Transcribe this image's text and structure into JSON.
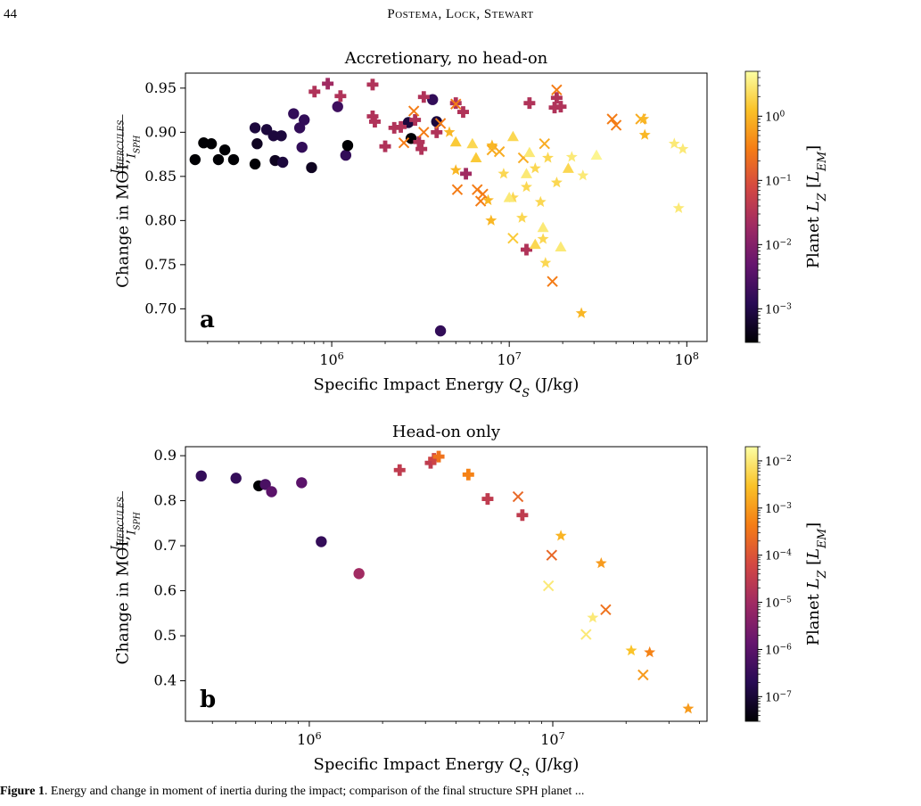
{
  "page": {
    "number": "44",
    "running_head": "Postema, Lock, Stewart",
    "caption_label": "Figure 1",
    "caption_text": ". Energy and change in moment of inertia during the impact; comparison of the final structure SPH planet ..."
  },
  "colorbar_palette": [
    "#000004",
    "#280b54",
    "#65156e",
    "#9f2a63",
    "#d44842",
    "#f57d15",
    "#fac228",
    "#fcffa4"
  ],
  "chart_data": [
    {
      "type": "scatter",
      "panel_letter": "a",
      "title": "Accretionary, no head-on",
      "xlabel": "Specific Impact Energy Q_S (J/kg)",
      "xlabel_parts": {
        "main": "Specific Impact Energy ",
        "sym": "Q",
        "sub": "S",
        "unit": " (J/kg)"
      },
      "ylabel_parts": {
        "main": "Change in MOI, ",
        "num": "I",
        "num_sub": "HERCULES",
        "den": "I",
        "den_sub": "SPH"
      },
      "x_scale": "log",
      "xlim": [
        150000,
        130000000
      ],
      "ylim": [
        0.663,
        0.967
      ],
      "yticks": [
        "0.70",
        "0.75",
        "0.80",
        "0.85",
        "0.90",
        "0.95"
      ],
      "xticks": [
        {
          "base": "10",
          "exp": "6"
        },
        {
          "base": "10",
          "exp": "7"
        },
        {
          "base": "10",
          "exp": "8"
        }
      ],
      "colorbar_label_parts": {
        "main": "Planet ",
        "sym": "L",
        "sub": "Z",
        "unit_l": " [",
        "unit": "L",
        "unit_sub": "EM",
        "unit_r": "]"
      },
      "colorbar_scale": "log",
      "colorbar_range": [
        0.0003,
        5
      ],
      "colorbar_ticks": [
        {
          "base": "10",
          "exp": "−3"
        },
        {
          "base": "10",
          "exp": "−2"
        },
        {
          "base": "10",
          "exp": "−1"
        },
        {
          "base": "10",
          "exp": "0"
        }
      ],
      "points": [
        {
          "x": 170000,
          "y": 0.869,
          "m": "o",
          "c": 0.0003
        },
        {
          "x": 190000,
          "y": 0.888,
          "m": "o",
          "c": 0.0003
        },
        {
          "x": 210000,
          "y": 0.887,
          "m": "o",
          "c": 0.0003
        },
        {
          "x": 230000,
          "y": 0.869,
          "m": "o",
          "c": 0.0003
        },
        {
          "x": 250000,
          "y": 0.88,
          "m": "o",
          "c": 0.0003
        },
        {
          "x": 280000,
          "y": 0.869,
          "m": "o",
          "c": 0.0003
        },
        {
          "x": 370000,
          "y": 0.864,
          "m": "o",
          "c": 0.0003
        },
        {
          "x": 370000,
          "y": 0.905,
          "m": "o",
          "c": 0.0008
        },
        {
          "x": 380000,
          "y": 0.887,
          "m": "o",
          "c": 0.0005
        },
        {
          "x": 430000,
          "y": 0.903,
          "m": "o",
          "c": 0.0008
        },
        {
          "x": 470000,
          "y": 0.896,
          "m": "o",
          "c": 0.0008
        },
        {
          "x": 480000,
          "y": 0.868,
          "m": "o",
          "c": 0.0005
        },
        {
          "x": 520000,
          "y": 0.896,
          "m": "o",
          "c": 0.0008
        },
        {
          "x": 530000,
          "y": 0.866,
          "m": "o",
          "c": 0.0008
        },
        {
          "x": 610000,
          "y": 0.921,
          "m": "o",
          "c": 0.0015
        },
        {
          "x": 660000,
          "y": 0.905,
          "m": "o",
          "c": 0.0015
        },
        {
          "x": 680000,
          "y": 0.883,
          "m": "o",
          "c": 0.0015
        },
        {
          "x": 700000,
          "y": 0.914,
          "m": "o",
          "c": 0.0015
        },
        {
          "x": 770000,
          "y": 0.86,
          "m": "o",
          "c": 0.0005
        },
        {
          "x": 1080000,
          "y": 0.929,
          "m": "o",
          "c": 0.002
        },
        {
          "x": 1200000,
          "y": 0.874,
          "m": "o",
          "c": 0.0015
        },
        {
          "x": 1230000,
          "y": 0.885,
          "m": "o",
          "c": 0.0003
        },
        {
          "x": 2700000,
          "y": 0.911,
          "m": "o",
          "c": 0.0008
        },
        {
          "x": 2800000,
          "y": 0.893,
          "m": "o",
          "c": 0.0003
        },
        {
          "x": 3700000,
          "y": 0.937,
          "m": "o",
          "c": 0.0015
        },
        {
          "x": 3900000,
          "y": 0.912,
          "m": "o",
          "c": 0.0008
        },
        {
          "x": 4100000,
          "y": 0.675,
          "m": "o",
          "c": 0.0015
        },
        {
          "x": 800000,
          "y": 0.946,
          "m": "P",
          "c": 0.03
        },
        {
          "x": 950000,
          "y": 0.955,
          "m": "P",
          "c": 0.02
        },
        {
          "x": 1120000,
          "y": 0.941,
          "m": "P",
          "c": 0.03
        },
        {
          "x": 1700000,
          "y": 0.954,
          "m": "P",
          "c": 0.03
        },
        {
          "x": 1700000,
          "y": 0.918,
          "m": "P",
          "c": 0.03
        },
        {
          "x": 1750000,
          "y": 0.912,
          "m": "P",
          "c": 0.03
        },
        {
          "x": 2000000,
          "y": 0.884,
          "m": "P",
          "c": 0.03
        },
        {
          "x": 2250000,
          "y": 0.905,
          "m": "P",
          "c": 0.03
        },
        {
          "x": 2450000,
          "y": 0.906,
          "m": "P",
          "c": 0.03
        },
        {
          "x": 2950000,
          "y": 0.914,
          "m": "P",
          "c": 0.03
        },
        {
          "x": 3100000,
          "y": 0.889,
          "m": "P",
          "c": 0.03
        },
        {
          "x": 3200000,
          "y": 0.881,
          "m": "P",
          "c": 0.03
        },
        {
          "x": 3300000,
          "y": 0.94,
          "m": "P",
          "c": 0.03
        },
        {
          "x": 3900000,
          "y": 0.9,
          "m": "P",
          "c": 0.03
        },
        {
          "x": 5000000,
          "y": 0.933,
          "m": "P",
          "c": 0.03
        },
        {
          "x": 5500000,
          "y": 0.923,
          "m": "P",
          "c": 0.03
        },
        {
          "x": 5700000,
          "y": 0.853,
          "m": "P",
          "c": 0.02
        },
        {
          "x": 12500000,
          "y": 0.767,
          "m": "P",
          "c": 0.03
        },
        {
          "x": 13000000,
          "y": 0.933,
          "m": "P",
          "c": 0.03
        },
        {
          "x": 18000000,
          "y": 0.928,
          "m": "P",
          "c": 0.03
        },
        {
          "x": 18500000,
          "y": 0.939,
          "m": "P",
          "c": 0.03
        },
        {
          "x": 19500000,
          "y": 0.929,
          "m": "P",
          "c": 0.03
        },
        {
          "x": 2550000,
          "y": 0.888,
          "m": "x",
          "c": 0.3
        },
        {
          "x": 2900000,
          "y": 0.924,
          "m": "x",
          "c": 0.3
        },
        {
          "x": 3300000,
          "y": 0.9,
          "m": "x",
          "c": 0.3
        },
        {
          "x": 4100000,
          "y": 0.91,
          "m": "x",
          "c": 0.3
        },
        {
          "x": 5000000,
          "y": 0.932,
          "m": "x",
          "c": 0.3
        },
        {
          "x": 5100000,
          "y": 0.835,
          "m": "x",
          "c": 0.3
        },
        {
          "x": 6600000,
          "y": 0.835,
          "m": "x",
          "c": 0.3
        },
        {
          "x": 6900000,
          "y": 0.822,
          "m": "x",
          "c": 0.3
        },
        {
          "x": 7100000,
          "y": 0.83,
          "m": "x",
          "c": 0.3
        },
        {
          "x": 8000000,
          "y": 0.88,
          "m": "x",
          "c": 0.8
        },
        {
          "x": 8800000,
          "y": 0.878,
          "m": "x",
          "c": 0.8
        },
        {
          "x": 10500000,
          "y": 0.78,
          "m": "x",
          "c": 1.5
        },
        {
          "x": 12000000,
          "y": 0.871,
          "m": "x",
          "c": 0.8
        },
        {
          "x": 15800000,
          "y": 0.887,
          "m": "x",
          "c": 0.8
        },
        {
          "x": 17500000,
          "y": 0.731,
          "m": "x",
          "c": 0.3
        },
        {
          "x": 18500000,
          "y": 0.948,
          "m": "x",
          "c": 0.3
        },
        {
          "x": 38000000,
          "y": 0.915,
          "m": "x",
          "c": 0.3
        },
        {
          "x": 40000000,
          "y": 0.908,
          "m": "x",
          "c": 0.3
        },
        {
          "x": 55000000,
          "y": 0.915,
          "m": "x",
          "c": 0.8
        },
        {
          "x": 4600000,
          "y": 0.9,
          "m": "*",
          "c": 1.0
        },
        {
          "x": 5000000,
          "y": 0.857,
          "m": "*",
          "c": 1.0
        },
        {
          "x": 7600000,
          "y": 0.823,
          "m": "*",
          "c": 1.0
        },
        {
          "x": 7900000,
          "y": 0.8,
          "m": "*",
          "c": 1.0
        },
        {
          "x": 8000000,
          "y": 0.885,
          "m": "*",
          "c": 1.0
        },
        {
          "x": 9300000,
          "y": 0.853,
          "m": "*",
          "c": 2.0
        },
        {
          "x": 10500000,
          "y": 0.826,
          "m": "*",
          "c": 2.0
        },
        {
          "x": 11800000,
          "y": 0.803,
          "m": "*",
          "c": 2.0
        },
        {
          "x": 12500000,
          "y": 0.838,
          "m": "*",
          "c": 2.0
        },
        {
          "x": 14000000,
          "y": 0.859,
          "m": "*",
          "c": 2.0
        },
        {
          "x": 15000000,
          "y": 0.821,
          "m": "*",
          "c": 2.0
        },
        {
          "x": 15500000,
          "y": 0.779,
          "m": "*",
          "c": 2.0
        },
        {
          "x": 16000000,
          "y": 0.752,
          "m": "*",
          "c": 2.0
        },
        {
          "x": 16500000,
          "y": 0.871,
          "m": "*",
          "c": 2.0
        },
        {
          "x": 18500000,
          "y": 0.843,
          "m": "*",
          "c": 2.0
        },
        {
          "x": 22500000,
          "y": 0.872,
          "m": "*",
          "c": 3.0
        },
        {
          "x": 25500000,
          "y": 0.695,
          "m": "*",
          "c": 1.0
        },
        {
          "x": 26000000,
          "y": 0.851,
          "m": "*",
          "c": 3.0
        },
        {
          "x": 57000000,
          "y": 0.915,
          "m": "*",
          "c": 1.0
        },
        {
          "x": 58000000,
          "y": 0.897,
          "m": "*",
          "c": 1.0
        },
        {
          "x": 85000000,
          "y": 0.887,
          "m": "*",
          "c": 3.0
        },
        {
          "x": 90000000,
          "y": 0.814,
          "m": "*",
          "c": 3.0
        },
        {
          "x": 95000000,
          "y": 0.881,
          "m": "*",
          "c": 3.0
        },
        {
          "x": 5000000,
          "y": 0.889,
          "m": "^",
          "c": 1.5
        },
        {
          "x": 6200000,
          "y": 0.887,
          "m": "^",
          "c": 2.0
        },
        {
          "x": 6500000,
          "y": 0.871,
          "m": "^",
          "c": 1.5
        },
        {
          "x": 10000000,
          "y": 0.826,
          "m": "^",
          "c": 3.0
        },
        {
          "x": 10500000,
          "y": 0.895,
          "m": "^",
          "c": 2.0
        },
        {
          "x": 12500000,
          "y": 0.853,
          "m": "^",
          "c": 3.0
        },
        {
          "x": 13000000,
          "y": 0.877,
          "m": "^",
          "c": 3.0
        },
        {
          "x": 14000000,
          "y": 0.773,
          "m": "^",
          "c": 2.0
        },
        {
          "x": 15500000,
          "y": 0.792,
          "m": "^",
          "c": 3.0
        },
        {
          "x": 19500000,
          "y": 0.77,
          "m": "^",
          "c": 3.0
        },
        {
          "x": 21500000,
          "y": 0.859,
          "m": "^",
          "c": 2.0
        },
        {
          "x": 31000000,
          "y": 0.874,
          "m": "^",
          "c": 4.0
        }
      ]
    },
    {
      "type": "scatter",
      "panel_letter": "b",
      "title": "Head-on only",
      "xlabel": "Specific Impact Energy Q_S (J/kg)",
      "xlabel_parts": {
        "main": "Specific Impact Energy ",
        "sym": "Q",
        "sub": "S",
        "unit": " (J/kg)"
      },
      "ylabel_parts": {
        "main": "Change in MOI, ",
        "num": "I",
        "num_sub": "HERCULES",
        "den": "I",
        "den_sub": "SPH"
      },
      "x_scale": "log",
      "xlim": [
        310000,
        43000000
      ],
      "ylim": [
        0.31,
        0.92
      ],
      "yticks": [
        "0.4",
        "0.5",
        "0.6",
        "0.7",
        "0.8",
        "0.9"
      ],
      "xticks": [
        {
          "base": "10",
          "exp": "6"
        },
        {
          "base": "10",
          "exp": "7"
        }
      ],
      "colorbar_label_parts": {
        "main": "Planet ",
        "sym": "L",
        "sub": "Z",
        "unit_l": " [",
        "unit": "L",
        "unit_sub": "EM",
        "unit_r": "]"
      },
      "colorbar_scale": "log",
      "colorbar_range": [
        3e-08,
        0.02
      ],
      "colorbar_ticks": [
        {
          "base": "10",
          "exp": "−7"
        },
        {
          "base": "10",
          "exp": "−6"
        },
        {
          "base": "10",
          "exp": "−5"
        },
        {
          "base": "10",
          "exp": "−4"
        },
        {
          "base": "10",
          "exp": "−3"
        },
        {
          "base": "10",
          "exp": "−2"
        }
      ],
      "points": [
        {
          "x": 360000,
          "y": 0.855,
          "m": "o",
          "c": 3e-07
        },
        {
          "x": 500000,
          "y": 0.85,
          "m": "o",
          "c": 3e-07
        },
        {
          "x": 620000,
          "y": 0.833,
          "m": "o",
          "c": 3e-08
        },
        {
          "x": 660000,
          "y": 0.836,
          "m": "o",
          "c": 6e-07
        },
        {
          "x": 700000,
          "y": 0.82,
          "m": "o",
          "c": 1e-06
        },
        {
          "x": 930000,
          "y": 0.84,
          "m": "o",
          "c": 1e-06
        },
        {
          "x": 1120000,
          "y": 0.709,
          "m": "o",
          "c": 3e-07
        },
        {
          "x": 1600000,
          "y": 0.638,
          "m": "o",
          "c": 1e-05
        },
        {
          "x": 2350000,
          "y": 0.868,
          "m": "P",
          "c": 3e-05
        },
        {
          "x": 3150000,
          "y": 0.884,
          "m": "P",
          "c": 3e-05
        },
        {
          "x": 3250000,
          "y": 0.893,
          "m": "P",
          "c": 5e-05
        },
        {
          "x": 3400000,
          "y": 0.898,
          "m": "P",
          "c": 0.0003
        },
        {
          "x": 4500000,
          "y": 0.858,
          "m": "P",
          "c": 0.0005
        },
        {
          "x": 5400000,
          "y": 0.804,
          "m": "P",
          "c": 3e-05
        },
        {
          "x": 7500000,
          "y": 0.768,
          "m": "P",
          "c": 3e-05
        },
        {
          "x": 7200000,
          "y": 0.809,
          "m": "x",
          "c": 0.0002
        },
        {
          "x": 9900000,
          "y": 0.679,
          "m": "x",
          "c": 0.0002
        },
        {
          "x": 9600000,
          "y": 0.611,
          "m": "x",
          "c": 0.01
        },
        {
          "x": 13700000,
          "y": 0.503,
          "m": "x",
          "c": 0.01
        },
        {
          "x": 16500000,
          "y": 0.558,
          "m": "x",
          "c": 0.0003
        },
        {
          "x": 23500000,
          "y": 0.413,
          "m": "x",
          "c": 0.001
        },
        {
          "x": 10800000,
          "y": 0.722,
          "m": "*",
          "c": 0.002
        },
        {
          "x": 14600000,
          "y": 0.54,
          "m": "*",
          "c": 0.01
        },
        {
          "x": 15800000,
          "y": 0.661,
          "m": "*",
          "c": 0.001
        },
        {
          "x": 21000000,
          "y": 0.467,
          "m": "*",
          "c": 0.003
        },
        {
          "x": 25000000,
          "y": 0.463,
          "m": "*",
          "c": 0.0005
        },
        {
          "x": 36000000,
          "y": 0.338,
          "m": "*",
          "c": 0.001
        }
      ]
    }
  ]
}
